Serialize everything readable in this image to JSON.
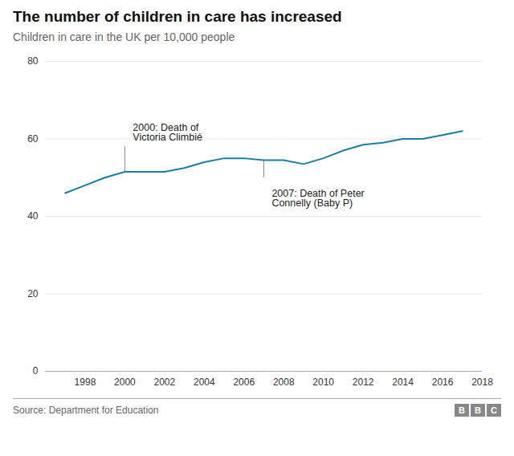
{
  "chart_data": {
    "type": "line",
    "title": "The number of children in care has increased",
    "subtitle": "Children in care in the UK per 10,000 people",
    "source": "Source: Department for Education",
    "logo": "BBC",
    "color": "#1a7fa0",
    "x": [
      1997,
      1998,
      1999,
      2000,
      2001,
      2002,
      2003,
      2004,
      2005,
      2006,
      2007,
      2008,
      2009,
      2010,
      2011,
      2012,
      2013,
      2014,
      2015,
      2016,
      2017
    ],
    "values": [
      46,
      48,
      50,
      51.5,
      51.5,
      51.5,
      52.5,
      54,
      55,
      55,
      54.5,
      54.5,
      53.5,
      55,
      57,
      58.5,
      59,
      60,
      60,
      61,
      62
    ],
    "xlim": [
      1996,
      2018
    ],
    "xticks": [
      1998,
      2000,
      2002,
      2004,
      2006,
      2008,
      2010,
      2012,
      2014,
      2016,
      2018
    ],
    "ylim": [
      0,
      80
    ],
    "yticks": [
      0,
      20,
      40,
      60,
      80
    ],
    "grid": "y",
    "annotations": [
      {
        "text": "2000: Death of\nVictoria Climbié",
        "x": 2000.4,
        "y": 64,
        "line_x": 2000,
        "line_y": [
          58,
          51.5
        ]
      },
      {
        "text": "2007: Death of Peter\nConnelly (Baby P)",
        "x": 2007.4,
        "y": 47,
        "line_x": 2007,
        "line_y": [
          50,
          54.5
        ]
      }
    ]
  }
}
